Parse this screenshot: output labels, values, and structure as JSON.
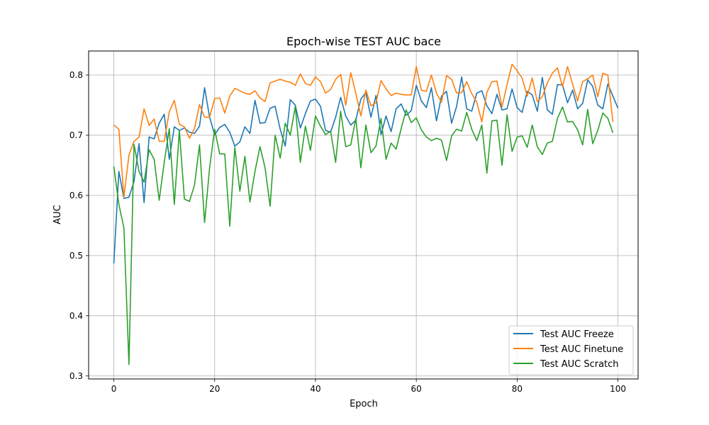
{
  "chart_data": {
    "type": "line",
    "title": "Epoch-wise TEST AUC bace",
    "xlabel": "Epoch",
    "ylabel": "AUC",
    "xlim": [
      -5,
      104
    ],
    "ylim": [
      0.295,
      0.84
    ],
    "xticks": [
      0,
      20,
      40,
      60,
      80,
      100
    ],
    "yticks": [
      0.3,
      0.4,
      0.5,
      0.6,
      0.7,
      0.8
    ],
    "xtick_labels": [
      "0",
      "20",
      "40",
      "60",
      "80",
      "100"
    ],
    "ytick_labels": [
      "0.3",
      "0.4",
      "0.5",
      "0.6",
      "0.7",
      "0.8"
    ],
    "grid": true,
    "legend_position": "lower-right",
    "series": [
      {
        "name": "Test AUC Freeze",
        "color": "#1f77b4",
        "values": [
          0.487,
          0.64,
          0.595,
          0.597,
          0.623,
          0.686,
          0.588,
          0.697,
          0.694,
          0.72,
          0.735,
          0.66,
          0.714,
          0.708,
          0.712,
          0.705,
          0.703,
          0.715,
          0.779,
          0.73,
          0.701,
          0.713,
          0.718,
          0.705,
          0.682,
          0.689,
          0.714,
          0.703,
          0.758,
          0.72,
          0.721,
          0.745,
          0.748,
          0.71,
          0.682,
          0.759,
          0.75,
          0.712,
          0.736,
          0.757,
          0.76,
          0.748,
          0.708,
          0.705,
          0.73,
          0.763,
          0.732,
          0.717,
          0.725,
          0.76,
          0.771,
          0.73,
          0.766,
          0.701,
          0.732,
          0.706,
          0.744,
          0.752,
          0.733,
          0.741,
          0.783,
          0.757,
          0.746,
          0.779,
          0.724,
          0.765,
          0.773,
          0.72,
          0.748,
          0.797,
          0.744,
          0.74,
          0.77,
          0.774,
          0.749,
          0.736,
          0.768,
          0.742,
          0.744,
          0.777,
          0.746,
          0.738,
          0.773,
          0.767,
          0.74,
          0.796,
          0.742,
          0.735,
          0.784,
          0.784,
          0.754,
          0.775,
          0.744,
          0.753,
          0.792,
          0.781,
          0.75,
          0.744,
          0.785,
          0.765,
          0.745
        ]
      },
      {
        "name": "Test AUC Finetune",
        "color": "#ff7f0e",
        "values": [
          0.717,
          0.71,
          0.597,
          0.667,
          0.69,
          0.697,
          0.744,
          0.716,
          0.727,
          0.69,
          0.69,
          0.739,
          0.758,
          0.718,
          0.714,
          0.695,
          0.711,
          0.751,
          0.73,
          0.73,
          0.761,
          0.762,
          0.737,
          0.765,
          0.778,
          0.774,
          0.77,
          0.768,
          0.774,
          0.762,
          0.756,
          0.787,
          0.79,
          0.793,
          0.79,
          0.788,
          0.783,
          0.802,
          0.786,
          0.783,
          0.797,
          0.789,
          0.77,
          0.776,
          0.793,
          0.801,
          0.75,
          0.804,
          0.77,
          0.732,
          0.775,
          0.749,
          0.754,
          0.791,
          0.777,
          0.766,
          0.77,
          0.768,
          0.767,
          0.767,
          0.814,
          0.775,
          0.773,
          0.8,
          0.77,
          0.755,
          0.799,
          0.793,
          0.77,
          0.771,
          0.789,
          0.769,
          0.755,
          0.722,
          0.771,
          0.789,
          0.79,
          0.747,
          0.784,
          0.818,
          0.807,
          0.795,
          0.765,
          0.795,
          0.756,
          0.764,
          0.787,
          0.803,
          0.812,
          0.781,
          0.814,
          0.785,
          0.757,
          0.789,
          0.794,
          0.8,
          0.764,
          0.803,
          0.8,
          0.722
        ]
      },
      {
        "name": "Test AUC Scratch",
        "color": "#2ca02c",
        "values": [
          0.648,
          0.585,
          0.546,
          0.319,
          0.685,
          0.64,
          0.622,
          0.676,
          0.66,
          0.592,
          0.655,
          0.711,
          0.585,
          0.708,
          0.594,
          0.59,
          0.617,
          0.684,
          0.555,
          0.646,
          0.71,
          0.669,
          0.669,
          0.549,
          0.68,
          0.607,
          0.665,
          0.589,
          0.64,
          0.681,
          0.646,
          0.582,
          0.7,
          0.662,
          0.72,
          0.7,
          0.748,
          0.655,
          0.715,
          0.675,
          0.732,
          0.715,
          0.701,
          0.707,
          0.655,
          0.74,
          0.681,
          0.684,
          0.728,
          0.646,
          0.717,
          0.671,
          0.682,
          0.728,
          0.66,
          0.687,
          0.677,
          0.711,
          0.742,
          0.721,
          0.729,
          0.709,
          0.697,
          0.691,
          0.695,
          0.692,
          0.658,
          0.699,
          0.71,
          0.707,
          0.738,
          0.71,
          0.691,
          0.717,
          0.637,
          0.724,
          0.725,
          0.65,
          0.734,
          0.673,
          0.697,
          0.699,
          0.68,
          0.717,
          0.681,
          0.668,
          0.687,
          0.69,
          0.728,
          0.747,
          0.722,
          0.723,
          0.709,
          0.684,
          0.743,
          0.686,
          0.708,
          0.737,
          0.728,
          0.704
        ]
      }
    ]
  }
}
